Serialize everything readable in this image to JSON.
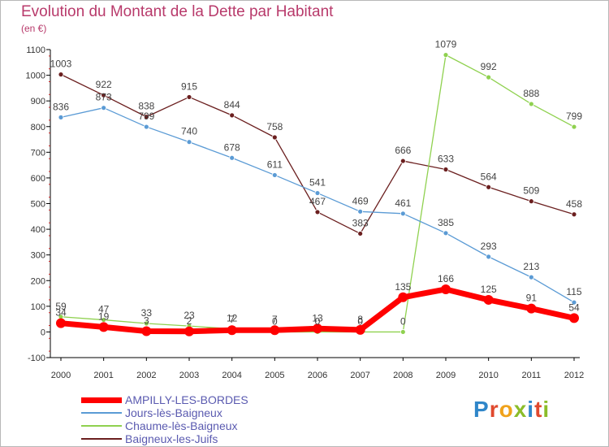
{
  "title": "Evolution du Montant de la Dette par Habitant",
  "subtitle": "(en €)",
  "logo": "Proxiti",
  "chart_data": {
    "type": "line",
    "x": [
      "2000",
      "2001",
      "2002",
      "2003",
      "2004",
      "2005",
      "2006",
      "2007",
      "2008",
      "2009",
      "2010",
      "2011",
      "2012"
    ],
    "ylim": [
      -100,
      1100
    ],
    "yticks": [
      -100,
      0,
      100,
      200,
      300,
      400,
      500,
      600,
      700,
      800,
      900,
      1000,
      1100
    ],
    "grid": false,
    "legend_position": "bottom-left",
    "series": [
      {
        "name": "AMPILLY-LES-BORDES",
        "color": "#ff0000",
        "values": [
          34,
          19,
          3,
          2,
          7,
          7,
          13,
          8,
          135,
          166,
          125,
          91,
          54
        ],
        "labels": [
          "34",
          "19",
          "3",
          "2",
          "7",
          "7",
          "13",
          "8",
          "135",
          "166",
          "125",
          "91",
          "54"
        ]
      },
      {
        "name": "Jours-lès-Baigneux",
        "color": "#5b9bd5",
        "values": [
          836,
          873,
          799,
          740,
          678,
          611,
          541,
          469,
          461,
          385,
          293,
          213,
          115
        ],
        "labels": [
          "836",
          "873",
          "799",
          "740",
          "678",
          "611",
          "541",
          "469",
          "461",
          "385",
          "293",
          "213",
          "115"
        ]
      },
      {
        "name": "Chaume-lès-Baigneux",
        "color": "#8fd14f",
        "values": [
          59,
          47,
          33,
          23,
          12,
          0,
          0,
          0,
          0,
          1079,
          992,
          888,
          799
        ],
        "labels": [
          "59",
          "47",
          "33",
          "23",
          "12",
          "0",
          "0",
          "0",
          "0",
          "1079",
          "992",
          "888",
          "799"
        ]
      },
      {
        "name": "Baigneux-les-Juifs",
        "color": "#6b1f1f",
        "values": [
          1003,
          922,
          838,
          915,
          844,
          758,
          467,
          383,
          666,
          633,
          564,
          509,
          458
        ],
        "labels": [
          "1003",
          "922",
          "838",
          "915",
          "844",
          "758",
          "467",
          "383",
          "666",
          "633",
          "564",
          "509",
          "458"
        ]
      }
    ]
  }
}
